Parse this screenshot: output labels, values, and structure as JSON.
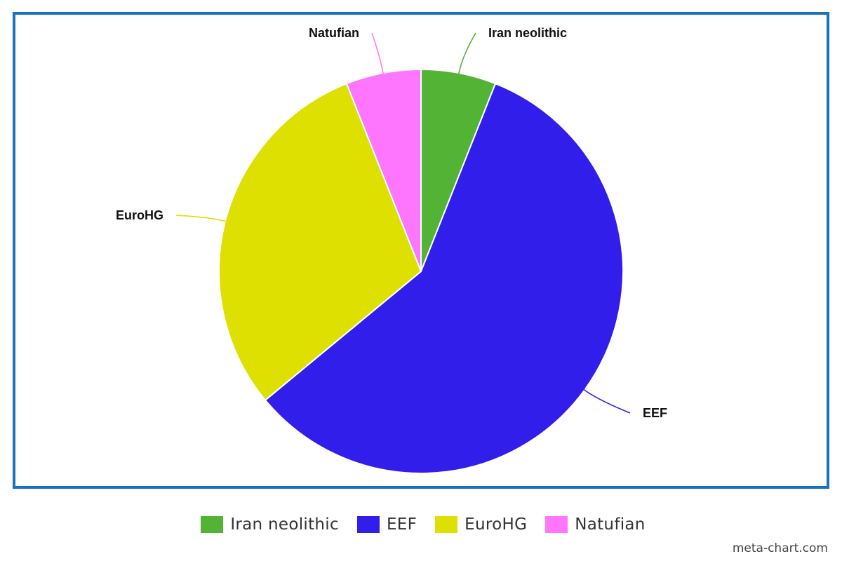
{
  "chart_data": {
    "type": "pie",
    "title": "",
    "slices": [
      {
        "label": "Iran neolithic",
        "value": 6,
        "color": "#52b335"
      },
      {
        "label": "EEF",
        "value": 58,
        "color": "#311eeb"
      },
      {
        "label": "EuroHG",
        "value": 30,
        "color": "#dde000"
      },
      {
        "label": "Natufian",
        "value": 6,
        "color": "#fd76fd"
      }
    ],
    "legend": {
      "placement": "bottom"
    },
    "frame_color": "#1a73b8"
  },
  "watermark": "meta-chart.com"
}
